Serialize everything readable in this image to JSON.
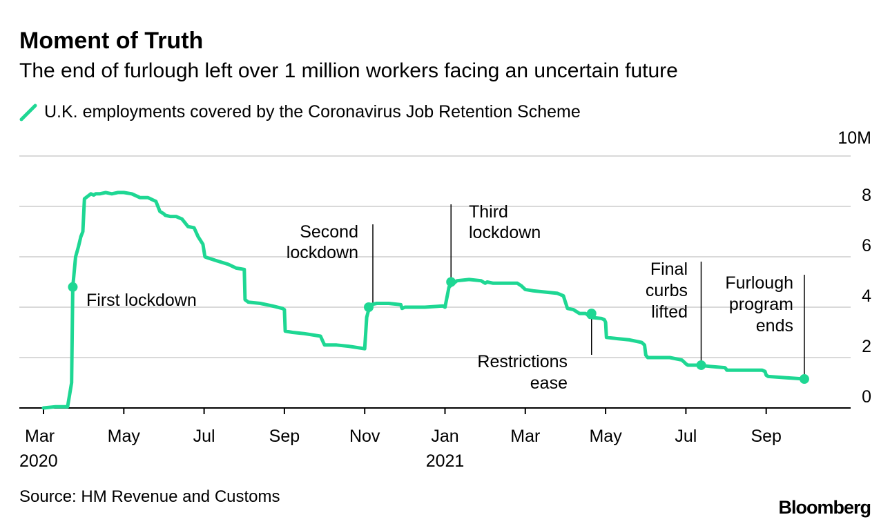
{
  "header": {
    "title": "Moment of Truth",
    "subtitle": "The end of furlough left over 1 million workers facing an uncertain future"
  },
  "legend": {
    "label": "U.K. employments covered by the Coronavirus Job Retention Scheme"
  },
  "footer": {
    "source": "Source: HM Revenue and Customs",
    "brand": "Bloomberg"
  },
  "colors": {
    "series": "#1ed793",
    "grid": "#d9d9d9",
    "axis": "#000000"
  },
  "chart_data": {
    "type": "line",
    "title": "Moment of Truth",
    "ylabel": "",
    "ylim": [
      0,
      10
    ],
    "yticks": [
      0,
      2,
      4,
      6,
      8,
      10
    ],
    "ytick_labels": [
      "0",
      "2",
      "4",
      "6",
      "8",
      "10M"
    ],
    "xlim": [
      0,
      19.3
    ],
    "xticks": [
      {
        "x": 0,
        "label": "Mar",
        "sublabel": "2020"
      },
      {
        "x": 2,
        "label": "May",
        "sublabel": ""
      },
      {
        "x": 4,
        "label": "Jul",
        "sublabel": ""
      },
      {
        "x": 6,
        "label": "Sep",
        "sublabel": ""
      },
      {
        "x": 8,
        "label": "Nov",
        "sublabel": ""
      },
      {
        "x": 10,
        "label": "Jan",
        "sublabel": "2021"
      },
      {
        "x": 12,
        "label": "Mar",
        "sublabel": ""
      },
      {
        "x": 14,
        "label": "May",
        "sublabel": ""
      },
      {
        "x": 16,
        "label": "Jul",
        "sublabel": ""
      },
      {
        "x": 18,
        "label": "Sep",
        "sublabel": ""
      }
    ],
    "series": [
      {
        "name": "U.K. employments covered by the Coronavirus Job Retention Scheme",
        "x": [
          0.0,
          0.3,
          0.6,
          0.7,
          0.73,
          0.8,
          0.87,
          0.93,
          0.98,
          1.02,
          1.1,
          1.18,
          1.25,
          1.3,
          1.4,
          1.55,
          1.7,
          1.85,
          2.0,
          2.2,
          2.4,
          2.6,
          2.8,
          2.9,
          3.0,
          3.03,
          3.15,
          3.3,
          3.45,
          3.6,
          3.75,
          3.85,
          3.97,
          4.02,
          4.1,
          4.3,
          4.6,
          4.8,
          5.0,
          5.02,
          5.1,
          5.4,
          5.7,
          5.95,
          6.0,
          6.02,
          6.2,
          6.5,
          6.9,
          6.97,
          7.0,
          7.02,
          7.3,
          7.6,
          8.0,
          8.05,
          8.1,
          8.15,
          8.3,
          8.6,
          8.9,
          8.93,
          9.0,
          9.5,
          9.95,
          10.0,
          10.1,
          10.3,
          10.6,
          10.9,
          11.0,
          11.05,
          11.2,
          11.5,
          11.8,
          11.9,
          12.0,
          12.2,
          12.5,
          12.8,
          12.95,
          13.0,
          13.05,
          13.2,
          13.35,
          13.5,
          13.55,
          13.6,
          13.9,
          13.97,
          14.0,
          14.02,
          14.3,
          14.6,
          14.9,
          14.97,
          15.0,
          15.05,
          15.3,
          15.6,
          15.9,
          15.97,
          16.0,
          16.05,
          16.3,
          16.6,
          16.97,
          17.0,
          17.02,
          17.5,
          17.9,
          17.97,
          18.0,
          18.05,
          18.5,
          18.95
        ],
        "values": [
          0.0,
          0.05,
          0.05,
          1.0,
          4.8,
          6.0,
          6.4,
          6.8,
          7.0,
          8.3,
          8.4,
          8.5,
          8.45,
          8.5,
          8.5,
          8.55,
          8.5,
          8.55,
          8.55,
          8.5,
          8.35,
          8.35,
          8.2,
          7.8,
          7.7,
          7.65,
          7.6,
          7.6,
          7.5,
          7.2,
          7.15,
          6.8,
          6.5,
          6.0,
          5.95,
          5.85,
          5.7,
          5.55,
          5.5,
          4.3,
          4.2,
          4.15,
          4.05,
          3.95,
          3.9,
          3.05,
          3.0,
          2.95,
          2.85,
          2.6,
          2.5,
          2.5,
          2.5,
          2.45,
          2.35,
          3.6,
          3.9,
          4.1,
          4.15,
          4.15,
          4.1,
          3.95,
          4.0,
          4.0,
          4.05,
          4.0,
          4.8,
          5.05,
          5.1,
          5.05,
          4.95,
          5.0,
          4.95,
          4.95,
          4.95,
          4.85,
          4.7,
          4.65,
          4.6,
          4.55,
          4.45,
          4.2,
          3.95,
          3.9,
          3.75,
          3.75,
          3.7,
          3.6,
          3.55,
          3.5,
          3.4,
          2.8,
          2.75,
          2.7,
          2.6,
          2.5,
          2.1,
          2.0,
          2.0,
          2.0,
          1.9,
          1.8,
          1.75,
          1.7,
          1.7,
          1.65,
          1.6,
          1.55,
          1.5,
          1.5,
          1.5,
          1.45,
          1.3,
          1.25,
          1.2,
          1.15
        ]
      }
    ],
    "markers": [
      {
        "x": 0.73,
        "y": 4.8
      },
      {
        "x": 8.1,
        "y": 4.0
      },
      {
        "x": 10.15,
        "y": 5.0
      },
      {
        "x": 13.65,
        "y": 3.75
      },
      {
        "x": 16.38,
        "y": 1.7
      },
      {
        "x": 18.95,
        "y": 1.15
      }
    ],
    "annotations": [
      {
        "name": "first-lockdown",
        "lines": [
          "First lockdown"
        ]
      },
      {
        "name": "second-lockdown",
        "lines": [
          "Second",
          "lockdown"
        ]
      },
      {
        "name": "third-lockdown",
        "lines": [
          "Third",
          "lockdown"
        ]
      },
      {
        "name": "restrictions-ease",
        "lines": [
          "Restrictions",
          "ease"
        ]
      },
      {
        "name": "final-curbs-lifted",
        "lines": [
          "Final",
          "curbs",
          "lifted"
        ]
      },
      {
        "name": "furlough-program-ends",
        "lines": [
          "Furlough",
          "program",
          "ends"
        ]
      }
    ]
  }
}
